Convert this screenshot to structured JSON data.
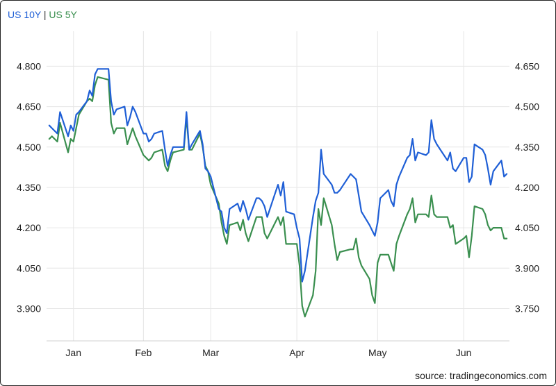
{
  "legend": {
    "us10y": "US 10Y",
    "separator": " | ",
    "us5y": "US 5Y"
  },
  "source": "source: tradingeconomics.com",
  "colors": {
    "us10y": "#1f5fd6",
    "us5y": "#3a8f4f",
    "grid": "#e6e6e6",
    "separator": "#333333"
  },
  "chart_data": {
    "type": "line",
    "title": "",
    "grid": true,
    "legend_position": "top-left",
    "x_ticks": [
      "Jan",
      "Feb",
      "Mar",
      "Apr",
      "May",
      "Jun"
    ],
    "x_tick_dates": [
      "2025-01-08",
      "2025-02-03",
      "2025-02-28",
      "2025-04-01",
      "2025-05-01",
      "2025-06-02"
    ],
    "left_axis": {
      "ticks": [
        "4.800",
        "4.650",
        "4.500",
        "4.350",
        "4.200",
        "4.050",
        "3.900"
      ],
      "ylim": [
        3.78,
        4.93
      ]
    },
    "right_axis": {
      "ticks": [
        "4.650",
        "4.500",
        "4.350",
        "4.200",
        "4.050",
        "3.900",
        "3.750"
      ],
      "ylim": [
        3.63,
        4.78
      ]
    },
    "series": [
      {
        "name": "US 10Y",
        "axis": "left",
        "points": [
          [
            "2024-12-30",
            4.58
          ],
          [
            "2024-12-31",
            4.57
          ],
          [
            "2025-01-02",
            4.55
          ],
          [
            "2025-01-03",
            4.63
          ],
          [
            "2025-01-06",
            4.54
          ],
          [
            "2025-01-07",
            4.58
          ],
          [
            "2025-01-08",
            4.56
          ],
          [
            "2025-01-09",
            4.62
          ],
          [
            "2025-01-10",
            4.63
          ],
          [
            "2025-01-13",
            4.67
          ],
          [
            "2025-01-14",
            4.71
          ],
          [
            "2025-01-15",
            4.69
          ],
          [
            "2025-01-16",
            4.77
          ],
          [
            "2025-01-17",
            4.79
          ],
          [
            "2025-01-21",
            4.79
          ],
          [
            "2025-01-22",
            4.67
          ],
          [
            "2025-01-23",
            4.62
          ],
          [
            "2025-01-24",
            4.64
          ],
          [
            "2025-01-27",
            4.65
          ],
          [
            "2025-01-28",
            4.58
          ],
          [
            "2025-01-29",
            4.61
          ],
          [
            "2025-01-30",
            4.65
          ],
          [
            "2025-01-31",
            4.63
          ],
          [
            "2025-02-03",
            4.55
          ],
          [
            "2025-02-04",
            4.55
          ],
          [
            "2025-02-05",
            4.52
          ],
          [
            "2025-02-06",
            4.53
          ],
          [
            "2025-02-07",
            4.55
          ],
          [
            "2025-02-10",
            4.56
          ],
          [
            "2025-02-11",
            4.49
          ],
          [
            "2025-02-12",
            4.43
          ],
          [
            "2025-02-13",
            4.47
          ],
          [
            "2025-02-14",
            4.5
          ],
          [
            "2025-02-18",
            4.5
          ],
          [
            "2025-02-19",
            4.63
          ],
          [
            "2025-02-20",
            4.49
          ],
          [
            "2025-02-21",
            4.51
          ],
          [
            "2025-02-24",
            4.56
          ],
          [
            "2025-02-25",
            4.51
          ],
          [
            "2025-02-26",
            4.42
          ],
          [
            "2025-02-27",
            4.41
          ],
          [
            "2025-02-28",
            4.39
          ],
          [
            "2025-03-03",
            4.27
          ],
          [
            "2025-03-04",
            4.26
          ],
          [
            "2025-03-05",
            4.2
          ],
          [
            "2025-03-06",
            4.18
          ],
          [
            "2025-03-07",
            4.27
          ],
          [
            "2025-03-10",
            4.29
          ],
          [
            "2025-03-11",
            4.26
          ],
          [
            "2025-03-12",
            4.3
          ],
          [
            "2025-03-13",
            4.27
          ],
          [
            "2025-03-14",
            4.23
          ],
          [
            "2025-03-17",
            4.31
          ],
          [
            "2025-03-18",
            4.31
          ],
          [
            "2025-03-19",
            4.3
          ],
          [
            "2025-03-20",
            4.28
          ],
          [
            "2025-03-21",
            4.24
          ],
          [
            "2025-03-24",
            4.33
          ],
          [
            "2025-03-25",
            4.36
          ],
          [
            "2025-03-26",
            4.32
          ],
          [
            "2025-03-27",
            4.37
          ],
          [
            "2025-03-28",
            4.26
          ],
          [
            "2025-03-31",
            4.25
          ],
          [
            "2025-04-01",
            4.2
          ],
          [
            "2025-04-02",
            4.16
          ],
          [
            "2025-04-03",
            4.0
          ],
          [
            "2025-04-04",
            4.04
          ],
          [
            "2025-04-07",
            4.24
          ],
          [
            "2025-04-08",
            4.3
          ],
          [
            "2025-04-09",
            4.33
          ],
          [
            "2025-04-10",
            4.49
          ],
          [
            "2025-04-11",
            4.4
          ],
          [
            "2025-04-14",
            4.36
          ],
          [
            "2025-04-15",
            4.33
          ],
          [
            "2025-04-16",
            4.33
          ],
          [
            "2025-04-17",
            4.34
          ],
          [
            "2025-04-21",
            4.4
          ],
          [
            "2025-04-22",
            4.39
          ],
          [
            "2025-04-23",
            4.38
          ],
          [
            "2025-04-24",
            4.32
          ],
          [
            "2025-04-25",
            4.26
          ],
          [
            "2025-04-28",
            4.21
          ],
          [
            "2025-04-29",
            4.19
          ],
          [
            "2025-04-30",
            4.17
          ],
          [
            "2025-05-01",
            4.22
          ],
          [
            "2025-05-02",
            4.31
          ],
          [
            "2025-05-05",
            4.34
          ],
          [
            "2025-05-06",
            4.3
          ],
          [
            "2025-05-07",
            4.28
          ],
          [
            "2025-05-08",
            4.36
          ],
          [
            "2025-05-09",
            4.39
          ],
          [
            "2025-05-12",
            4.46
          ],
          [
            "2025-05-13",
            4.47
          ],
          [
            "2025-05-14",
            4.53
          ],
          [
            "2025-05-15",
            4.45
          ],
          [
            "2025-05-16",
            4.48
          ],
          [
            "2025-05-19",
            4.47
          ],
          [
            "2025-05-20",
            4.48
          ],
          [
            "2025-05-21",
            4.6
          ],
          [
            "2025-05-22",
            4.53
          ],
          [
            "2025-05-23",
            4.51
          ],
          [
            "2025-05-27",
            4.45
          ],
          [
            "2025-05-28",
            4.48
          ],
          [
            "2025-05-29",
            4.42
          ],
          [
            "2025-05-30",
            4.41
          ],
          [
            "2025-06-02",
            4.46
          ],
          [
            "2025-06-03",
            4.46
          ],
          [
            "2025-06-04",
            4.37
          ],
          [
            "2025-06-05",
            4.39
          ],
          [
            "2025-06-06",
            4.51
          ],
          [
            "2025-06-09",
            4.49
          ],
          [
            "2025-06-10",
            4.47
          ],
          [
            "2025-06-11",
            4.42
          ],
          [
            "2025-06-12",
            4.36
          ],
          [
            "2025-06-13",
            4.41
          ],
          [
            "2025-06-16",
            4.45
          ],
          [
            "2025-06-17",
            4.39
          ],
          [
            "2025-06-18",
            4.4
          ]
        ]
      },
      {
        "name": "US 5Y",
        "axis": "right",
        "points": [
          [
            "2024-12-30",
            4.38
          ],
          [
            "2024-12-31",
            4.39
          ],
          [
            "2025-01-02",
            4.37
          ],
          [
            "2025-01-03",
            4.44
          ],
          [
            "2025-01-06",
            4.33
          ],
          [
            "2025-01-07",
            4.38
          ],
          [
            "2025-01-08",
            4.37
          ],
          [
            "2025-01-09",
            4.42
          ],
          [
            "2025-01-10",
            4.47
          ],
          [
            "2025-01-13",
            4.52
          ],
          [
            "2025-01-14",
            4.53
          ],
          [
            "2025-01-15",
            4.52
          ],
          [
            "2025-01-16",
            4.58
          ],
          [
            "2025-01-17",
            4.61
          ],
          [
            "2025-01-21",
            4.6
          ],
          [
            "2025-01-22",
            4.44
          ],
          [
            "2025-01-23",
            4.4
          ],
          [
            "2025-01-24",
            4.42
          ],
          [
            "2025-01-27",
            4.42
          ],
          [
            "2025-01-28",
            4.36
          ],
          [
            "2025-01-29",
            4.39
          ],
          [
            "2025-01-30",
            4.42
          ],
          [
            "2025-01-31",
            4.39
          ],
          [
            "2025-02-03",
            4.32
          ],
          [
            "2025-02-04",
            4.31
          ],
          [
            "2025-02-05",
            4.3
          ],
          [
            "2025-02-06",
            4.31
          ],
          [
            "2025-02-07",
            4.33
          ],
          [
            "2025-02-10",
            4.34
          ],
          [
            "2025-02-11",
            4.28
          ],
          [
            "2025-02-12",
            4.26
          ],
          [
            "2025-02-13",
            4.3
          ],
          [
            "2025-02-14",
            4.33
          ],
          [
            "2025-02-18",
            4.34
          ],
          [
            "2025-02-19",
            4.46
          ],
          [
            "2025-02-20",
            4.34
          ],
          [
            "2025-02-21",
            4.34
          ],
          [
            "2025-02-24",
            4.4
          ],
          [
            "2025-02-25",
            4.35
          ],
          [
            "2025-02-26",
            4.28
          ],
          [
            "2025-02-27",
            4.26
          ],
          [
            "2025-02-28",
            4.21
          ],
          [
            "2025-03-03",
            4.14
          ],
          [
            "2025-03-04",
            4.07
          ],
          [
            "2025-03-05",
            4.02
          ],
          [
            "2025-03-06",
            3.99
          ],
          [
            "2025-03-07",
            4.06
          ],
          [
            "2025-03-10",
            4.07
          ],
          [
            "2025-03-11",
            4.04
          ],
          [
            "2025-03-12",
            4.08
          ],
          [
            "2025-03-13",
            4.03
          ],
          [
            "2025-03-14",
            4.0
          ],
          [
            "2025-03-17",
            4.09
          ],
          [
            "2025-03-18",
            4.09
          ],
          [
            "2025-03-19",
            4.09
          ],
          [
            "2025-03-20",
            4.03
          ],
          [
            "2025-03-21",
            4.01
          ],
          [
            "2025-03-24",
            4.07
          ],
          [
            "2025-03-25",
            4.09
          ],
          [
            "2025-03-26",
            4.06
          ],
          [
            "2025-03-27",
            4.09
          ],
          [
            "2025-03-28",
            3.99
          ],
          [
            "2025-03-31",
            3.99
          ],
          [
            "2025-04-01",
            3.99
          ],
          [
            "2025-04-02",
            3.91
          ],
          [
            "2025-04-03",
            3.76
          ],
          [
            "2025-04-04",
            3.72
          ],
          [
            "2025-04-07",
            3.8
          ],
          [
            "2025-04-08",
            3.89
          ],
          [
            "2025-04-09",
            4.12
          ],
          [
            "2025-04-10",
            4.06
          ],
          [
            "2025-04-11",
            4.16
          ],
          [
            "2025-04-14",
            4.06
          ],
          [
            "2025-04-15",
            3.99
          ],
          [
            "2025-04-16",
            3.93
          ],
          [
            "2025-04-17",
            3.96
          ],
          [
            "2025-04-21",
            3.97
          ],
          [
            "2025-04-22",
            3.97
          ],
          [
            "2025-04-23",
            4.01
          ],
          [
            "2025-04-24",
            3.94
          ],
          [
            "2025-04-25",
            3.91
          ],
          [
            "2025-04-28",
            3.86
          ],
          [
            "2025-04-29",
            3.8
          ],
          [
            "2025-04-30",
            3.77
          ],
          [
            "2025-05-01",
            3.92
          ],
          [
            "2025-05-02",
            3.95
          ],
          [
            "2025-05-05",
            3.95
          ],
          [
            "2025-05-06",
            3.92
          ],
          [
            "2025-05-07",
            3.89
          ],
          [
            "2025-05-08",
            3.99
          ],
          [
            "2025-05-09",
            4.02
          ],
          [
            "2025-05-12",
            4.1
          ],
          [
            "2025-05-13",
            4.12
          ],
          [
            "2025-05-14",
            4.16
          ],
          [
            "2025-05-15",
            4.07
          ],
          [
            "2025-05-16",
            4.1
          ],
          [
            "2025-05-19",
            4.1
          ],
          [
            "2025-05-20",
            4.09
          ],
          [
            "2025-05-21",
            4.17
          ],
          [
            "2025-05-22",
            4.1
          ],
          [
            "2025-05-23",
            4.09
          ],
          [
            "2025-05-27",
            4.09
          ],
          [
            "2025-05-28",
            4.05
          ],
          [
            "2025-05-29",
            4.06
          ],
          [
            "2025-05-30",
            3.99
          ],
          [
            "2025-06-02",
            4.01
          ],
          [
            "2025-06-03",
            4.02
          ],
          [
            "2025-06-04",
            3.94
          ],
          [
            "2025-06-05",
            4.02
          ],
          [
            "2025-06-06",
            4.13
          ],
          [
            "2025-06-09",
            4.12
          ],
          [
            "2025-06-10",
            4.1
          ],
          [
            "2025-06-11",
            4.06
          ],
          [
            "2025-06-12",
            4.04
          ],
          [
            "2025-06-13",
            4.05
          ],
          [
            "2025-06-16",
            4.05
          ],
          [
            "2025-06-17",
            4.01
          ],
          [
            "2025-06-18",
            4.01
          ]
        ]
      }
    ]
  }
}
